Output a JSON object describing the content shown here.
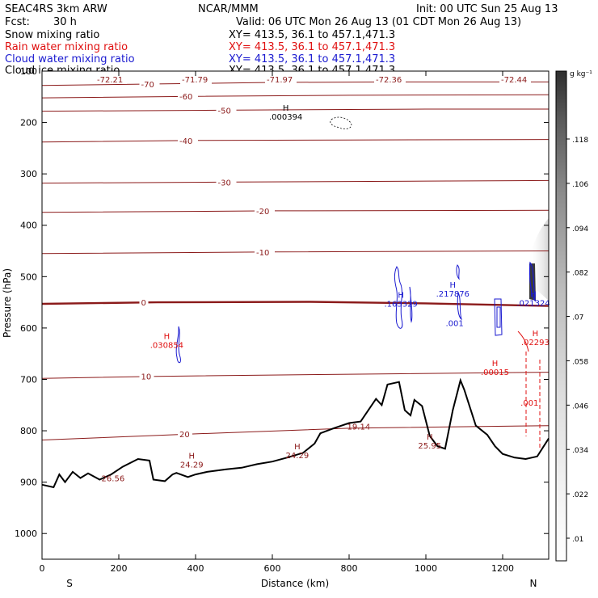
{
  "header": {
    "model": "SEAC4RS  3km ARW",
    "org": "NCAR/MMM",
    "init": "Init: 00 UTC Sun 25 Aug 13",
    "fcst_label": "Fcst:",
    "fcst_value": "30 h",
    "valid": "Valid: 06 UTC Mon 26 Aug 13 (01 CDT Mon 26 Aug 13)",
    "fields": [
      {
        "name": "Snow mixing ratio",
        "xy": "XY= 413.5, 36.1 to 457.1,471.3",
        "color": "#000000"
      },
      {
        "name": "Rain water mixing ratio",
        "xy": "XY= 413.5, 36.1 to 457.1,471.3",
        "color": "#e01010"
      },
      {
        "name": "Cloud water mixing ratio",
        "xy": "XY= 413.5, 36.1 to 457.1,471.3",
        "color": "#1a1ad0"
      },
      {
        "name": "Cloud ice mixing ratio",
        "xy": "XY= 413.5, 36.1 to 457.1,471.3",
        "color": "#000000"
      }
    ]
  },
  "colorbar": {
    "unit": "g kg⁻¹",
    "ticks": [
      ".118",
      ".106",
      ".094",
      ".082",
      ".07",
      ".058",
      ".046",
      ".034",
      ".022",
      ".01"
    ]
  },
  "colors": {
    "temperature": "#8b1a1a",
    "freezing": "#8b1a1a",
    "rain": "#e01010",
    "cloud_water": "#1a1ad0",
    "terrain": "#000000"
  },
  "chart_data": {
    "type": "line",
    "title": "",
    "xlabel": "Distance (km)",
    "ylabel": "Pressure (hPa)",
    "xlim": [
      0,
      1320
    ],
    "ylim": [
      1050,
      100
    ],
    "x_ticks": [
      "0",
      "200",
      "400",
      "600",
      "800",
      "1000",
      "1200"
    ],
    "y_ticks": [
      "100",
      "200",
      "300",
      "400",
      "500",
      "600",
      "700",
      "800",
      "900",
      "1000"
    ],
    "direction_left": "S",
    "direction_right": "N",
    "temperature_contours": [
      {
        "label": "-70",
        "points": [
          [
            0,
            128
          ],
          [
            300,
            125
          ],
          [
            600,
            122
          ],
          [
            900,
            121
          ],
          [
            1100,
            121
          ],
          [
            1320,
            121
          ]
        ]
      },
      {
        "label": "-60",
        "points": [
          [
            0,
            152
          ],
          [
            400,
            149
          ],
          [
            800,
            147
          ],
          [
            1320,
            146
          ]
        ]
      },
      {
        "label": "-50",
        "points": [
          [
            0,
            178
          ],
          [
            500,
            176
          ],
          [
            1000,
            174
          ],
          [
            1320,
            174
          ]
        ]
      },
      {
        "label": "-40",
        "points": [
          [
            0,
            238
          ],
          [
            400,
            235
          ],
          [
            800,
            234
          ],
          [
            1320,
            233
          ]
        ]
      },
      {
        "label": "-30",
        "points": [
          [
            0,
            318
          ],
          [
            500,
            316
          ],
          [
            1000,
            314
          ],
          [
            1320,
            313
          ]
        ]
      },
      {
        "label": "-20",
        "points": [
          [
            0,
            375
          ],
          [
            600,
            372
          ],
          [
            1320,
            371
          ]
        ]
      },
      {
        "label": "-10",
        "points": [
          [
            0,
            455
          ],
          [
            600,
            452
          ],
          [
            1320,
            450
          ]
        ]
      },
      {
        "label": "0",
        "points": [
          [
            0,
            553
          ],
          [
            300,
            550
          ],
          [
            700,
            549
          ],
          [
            1000,
            552
          ],
          [
            1320,
            557
          ]
        ]
      },
      {
        "label": "10",
        "points": [
          [
            0,
            698
          ],
          [
            300,
            694
          ],
          [
            800,
            690
          ],
          [
            1320,
            686
          ]
        ]
      },
      {
        "label": "20",
        "points": [
          [
            0,
            818
          ],
          [
            400,
            806
          ],
          [
            800,
            795
          ],
          [
            1320,
            790
          ]
        ]
      }
    ],
    "temperature_labels_top": [
      "-72.21",
      "-71.79",
      "-71.97",
      "-72.36",
      "-72.44"
    ],
    "highs": [
      {
        "x": 635,
        "p": 193,
        "value": ".000394"
      },
      {
        "x": 935,
        "p": 557,
        "value": ".163329"
      },
      {
        "x": 1070,
        "p": 537,
        "value": ".217876"
      },
      {
        "x": 1280,
        "p": 555,
        "value": ".021324"
      },
      {
        "x": 325,
        "p": 637,
        "value": ".030854"
      },
      {
        "x": 1180,
        "p": 690,
        "value": ".00015"
      },
      {
        "x": 1285,
        "p": 632,
        "value": ".02293"
      },
      {
        "x": 390,
        "p": 870,
        "value": "24.29"
      },
      {
        "x": 665,
        "p": 852,
        "value": "24.29"
      },
      {
        "x": 1010,
        "p": 833,
        "value": "25.95"
      }
    ],
    "point_labels": [
      {
        "x": 185,
        "p": 892,
        "value": "26.56"
      },
      {
        "x": 825,
        "p": 791,
        "value": "19.14"
      },
      {
        "x": 1075,
        "p": 590,
        "value": ".001"
      },
      {
        "x": 1270,
        "p": 745,
        "value": ".001"
      }
    ],
    "terrain": [
      [
        0,
        905
      ],
      [
        30,
        910
      ],
      [
        45,
        885
      ],
      [
        60,
        900
      ],
      [
        80,
        880
      ],
      [
        100,
        892
      ],
      [
        120,
        883
      ],
      [
        150,
        895
      ],
      [
        180,
        885
      ],
      [
        210,
        870
      ],
      [
        250,
        855
      ],
      [
        280,
        858
      ],
      [
        290,
        895
      ],
      [
        320,
        898
      ],
      [
        340,
        885
      ],
      [
        350,
        882
      ],
      [
        380,
        890
      ],
      [
        400,
        885
      ],
      [
        430,
        880
      ],
      [
        480,
        875
      ],
      [
        520,
        872
      ],
      [
        560,
        865
      ],
      [
        600,
        860
      ],
      [
        640,
        852
      ],
      [
        680,
        843
      ],
      [
        710,
        825
      ],
      [
        725,
        805
      ],
      [
        760,
        795
      ],
      [
        800,
        785
      ],
      [
        830,
        782
      ],
      [
        850,
        760
      ],
      [
        870,
        738
      ],
      [
        885,
        750
      ],
      [
        900,
        710
      ],
      [
        930,
        705
      ],
      [
        945,
        760
      ],
      [
        960,
        770
      ],
      [
        970,
        740
      ],
      [
        990,
        752
      ],
      [
        1010,
        810
      ],
      [
        1030,
        830
      ],
      [
        1050,
        835
      ],
      [
        1070,
        760
      ],
      [
        1090,
        702
      ],
      [
        1100,
        720
      ],
      [
        1130,
        790
      ],
      [
        1160,
        808
      ],
      [
        1180,
        830
      ],
      [
        1200,
        845
      ],
      [
        1230,
        852
      ],
      [
        1260,
        855
      ],
      [
        1290,
        850
      ],
      [
        1320,
        815
      ]
    ]
  }
}
